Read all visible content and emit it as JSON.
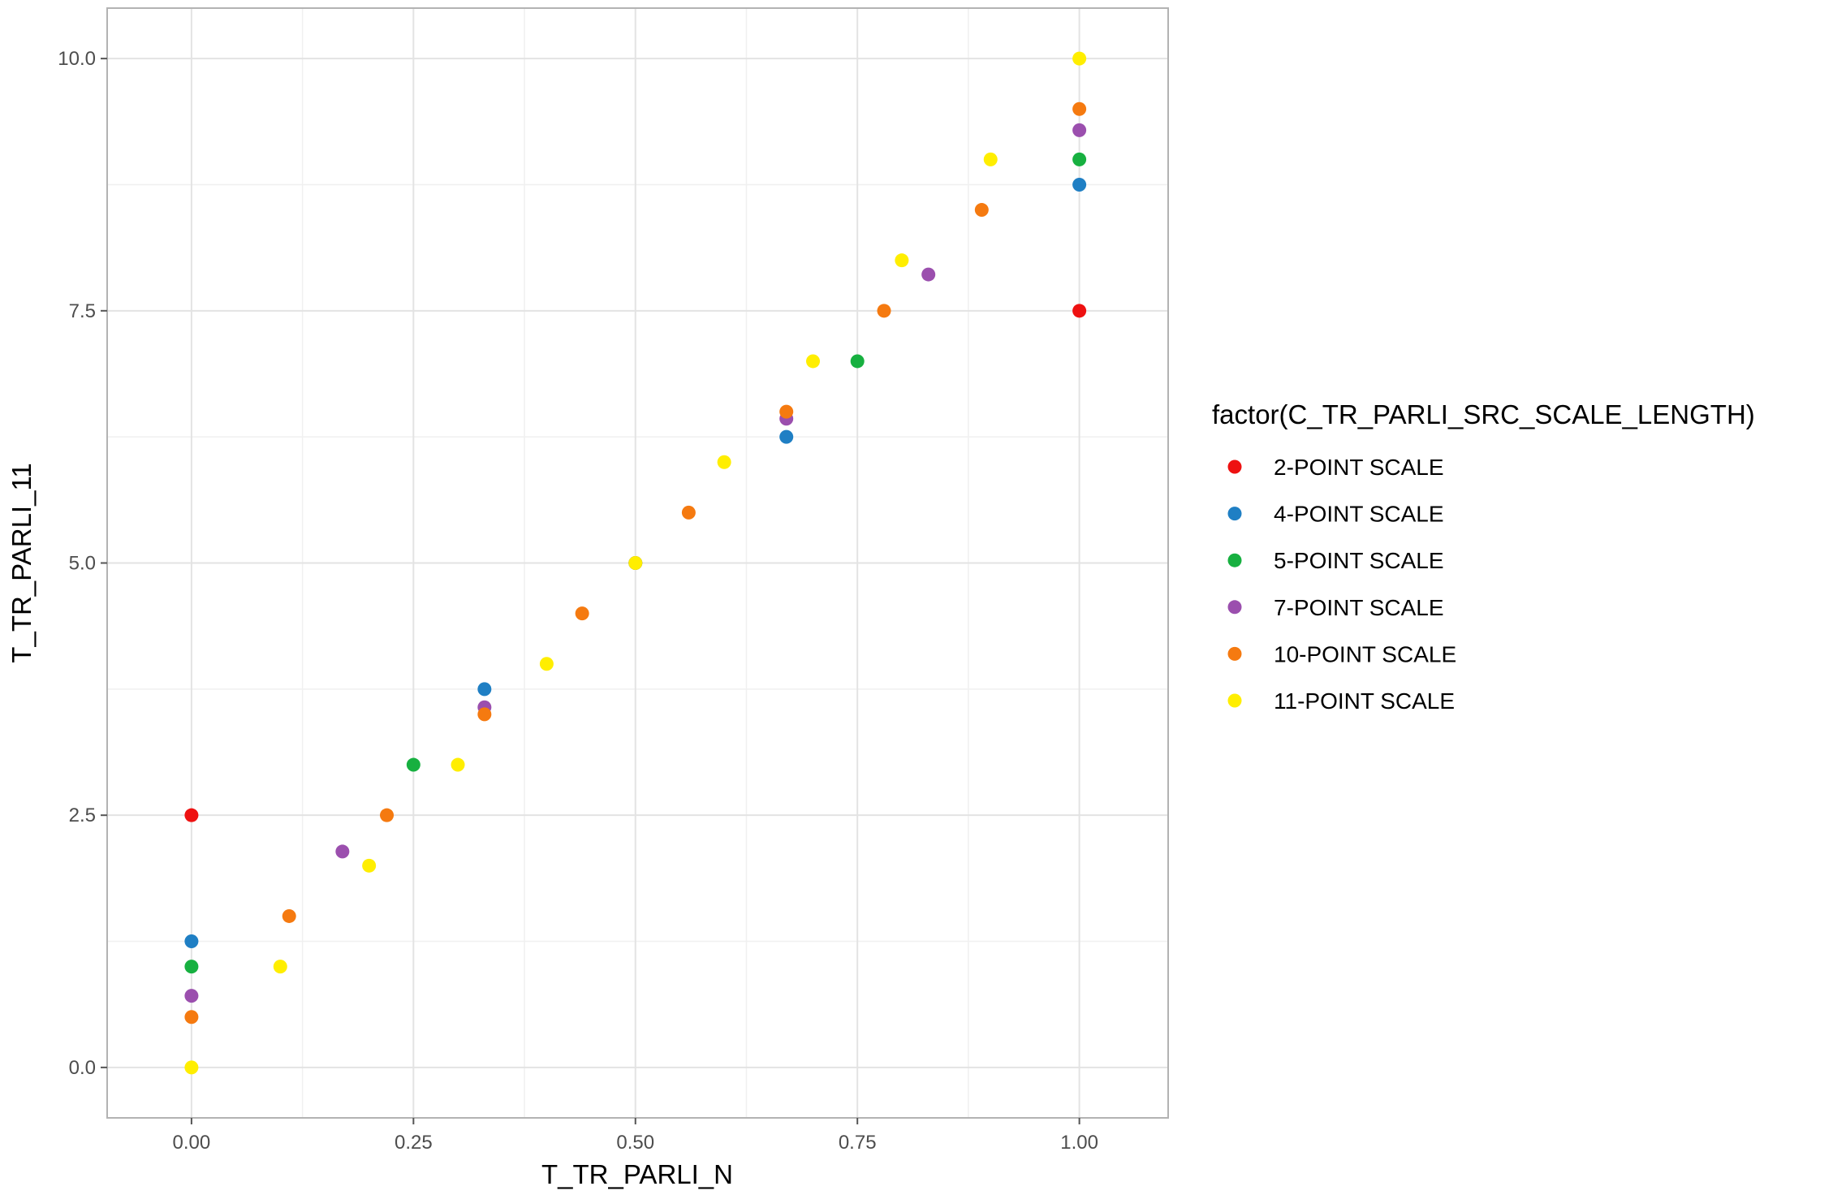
{
  "chart_data": {
    "type": "scatter",
    "title": "",
    "xlabel": "T_TR_PARLI_N",
    "ylabel": "T_TR_PARLI_11",
    "xlim": [
      -0.095,
      1.1
    ],
    "ylim": [
      -0.5,
      10.5
    ],
    "x_ticks": [
      0,
      0.25,
      0.5,
      0.75,
      1
    ],
    "x_tick_labels": [
      "0.00",
      "0.25",
      "0.50",
      "0.75",
      "1.00"
    ],
    "y_ticks": [
      0,
      2.5,
      5,
      7.5,
      10
    ],
    "y_tick_labels": [
      "0.0",
      "2.5",
      "5.0",
      "7.5",
      "10.0"
    ],
    "grid": true,
    "legend": {
      "title": "factor(C_TR_PARLI_SRC_SCALE_LENGTH)",
      "placement": "right"
    },
    "series": [
      {
        "name": "2-POINT SCALE",
        "color": "#ee1111",
        "points": [
          [
            0,
            2.5
          ],
          [
            1,
            7.5
          ]
        ]
      },
      {
        "name": "4-POINT SCALE",
        "color": "#1f7fc4",
        "points": [
          [
            0,
            1.25
          ],
          [
            0.33,
            3.75
          ],
          [
            0.67,
            6.25
          ],
          [
            1,
            8.75
          ]
        ]
      },
      {
        "name": "5-POINT SCALE",
        "color": "#17b040",
        "points": [
          [
            0,
            1
          ],
          [
            0.25,
            3
          ],
          [
            0.5,
            5
          ],
          [
            0.75,
            7
          ],
          [
            1,
            9
          ]
        ]
      },
      {
        "name": "7-POINT SCALE",
        "color": "#9b4fae",
        "points": [
          [
            0,
            0.71
          ],
          [
            0.17,
            2.14
          ],
          [
            0.33,
            3.57
          ],
          [
            0.5,
            5
          ],
          [
            0.67,
            6.43
          ],
          [
            0.83,
            7.86
          ],
          [
            1,
            9.29
          ]
        ]
      },
      {
        "name": "10-POINT SCALE",
        "color": "#f57a10",
        "points": [
          [
            0,
            0.5
          ],
          [
            0.11,
            1.5
          ],
          [
            0.22,
            2.5
          ],
          [
            0.33,
            3.5
          ],
          [
            0.44,
            4.5
          ],
          [
            0.56,
            5.5
          ],
          [
            0.67,
            6.5
          ],
          [
            0.78,
            7.5
          ],
          [
            0.89,
            8.5
          ],
          [
            1,
            9.5
          ]
        ]
      },
      {
        "name": "11-POINT SCALE",
        "color": "#ffee00",
        "points": [
          [
            0,
            0
          ],
          [
            0.1,
            1
          ],
          [
            0.2,
            2
          ],
          [
            0.3,
            3
          ],
          [
            0.4,
            4
          ],
          [
            0.5,
            5
          ],
          [
            0.6,
            6
          ],
          [
            0.7,
            7
          ],
          [
            0.8,
            8
          ],
          [
            0.9,
            9
          ],
          [
            1,
            10
          ]
        ]
      }
    ]
  }
}
